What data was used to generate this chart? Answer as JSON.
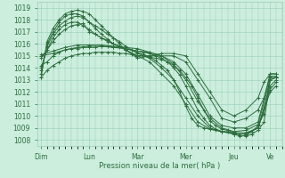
{
  "title": "",
  "xlabel": "Pression niveau de la mer( hPa )",
  "ylabel": "",
  "bg_color": "#cceedd",
  "grid_color": "#99ccbb",
  "line_color": "#2d6e3e",
  "marker_color": "#2d6e3e",
  "ylim": [
    1007.5,
    1019.5
  ],
  "yticks": [
    1008,
    1009,
    1010,
    1011,
    1012,
    1013,
    1014,
    1015,
    1016,
    1017,
    1018,
    1019
  ],
  "day_positions": [
    0,
    24,
    48,
    72,
    96,
    114
  ],
  "day_labels": [
    "Dim",
    "Lun",
    "Mar",
    "Mer",
    "Jeu",
    "Ve"
  ],
  "xlim": [
    -2,
    120
  ],
  "series": [
    [
      0,
      1013.2,
      3,
      1013.8,
      6,
      1014.2,
      9,
      1014.5,
      12,
      1014.8,
      15,
      1015.0,
      18,
      1015.1,
      21,
      1015.2,
      24,
      1015.2,
      27,
      1015.3,
      30,
      1015.3,
      33,
      1015.3,
      36,
      1015.3,
      39,
      1015.2,
      42,
      1015.2,
      45,
      1015.1,
      48,
      1015.0,
      51,
      1015.0,
      54,
      1014.9,
      57,
      1014.8,
      60,
      1014.7,
      63,
      1014.5,
      66,
      1014.2,
      69,
      1013.8,
      72,
      1013.2,
      75,
      1012.5,
      78,
      1011.5,
      81,
      1010.5,
      84,
      1009.6,
      87,
      1009.2,
      90,
      1008.9,
      93,
      1008.8,
      96,
      1008.6,
      99,
      1008.4,
      102,
      1008.3,
      105,
      1008.5,
      108,
      1008.8,
      111,
      1009.5,
      114,
      1013.0,
      117,
      1013.2
    ],
    [
      0,
      1014.2,
      3,
      1014.5,
      6,
      1015.0,
      9,
      1015.3,
      12,
      1015.5,
      15,
      1015.6,
      18,
      1015.6,
      21,
      1015.7,
      24,
      1015.7,
      27,
      1015.7,
      30,
      1015.8,
      33,
      1015.8,
      36,
      1015.7,
      39,
      1015.7,
      42,
      1015.6,
      45,
      1015.5,
      48,
      1015.4,
      51,
      1015.3,
      54,
      1015.2,
      57,
      1015.0,
      60,
      1014.8,
      63,
      1014.5,
      66,
      1014.0,
      69,
      1013.4,
      72,
      1012.5,
      75,
      1011.5,
      78,
      1010.5,
      81,
      1009.8,
      84,
      1009.2,
      87,
      1008.9,
      90,
      1008.7,
      93,
      1008.7,
      96,
      1008.5,
      99,
      1008.3,
      102,
      1008.4,
      105,
      1008.7,
      108,
      1009.2,
      111,
      1010.2,
      114,
      1013.2,
      117,
      1013.2
    ],
    [
      0,
      1015.0,
      6,
      1015.2,
      12,
      1015.5,
      18,
      1015.7,
      24,
      1015.8,
      30,
      1015.8,
      36,
      1015.7,
      42,
      1015.6,
      48,
      1015.4,
      54,
      1015.3,
      60,
      1015.0,
      66,
      1014.5,
      72,
      1013.5,
      78,
      1011.8,
      84,
      1010.0,
      90,
      1009.2,
      96,
      1009.0,
      102,
      1009.0,
      108,
      1009.5,
      114,
      1013.3,
      117,
      1013.3
    ],
    [
      0,
      1015.1,
      6,
      1015.4,
      12,
      1015.7,
      18,
      1015.9,
      24,
      1015.9,
      30,
      1015.9,
      36,
      1015.8,
      42,
      1015.7,
      48,
      1015.6,
      54,
      1015.3,
      60,
      1015.0,
      66,
      1014.3,
      72,
      1013.0,
      78,
      1011.2,
      84,
      1009.8,
      90,
      1009.0,
      96,
      1008.7,
      102,
      1008.8,
      108,
      1009.3,
      114,
      1013.0,
      117,
      1013.2
    ],
    [
      0,
      1014.8,
      6,
      1016.2,
      9,
      1016.8,
      12,
      1017.2,
      15,
      1017.5,
      18,
      1017.6,
      21,
      1017.7,
      24,
      1017.0,
      27,
      1016.8,
      30,
      1016.5,
      33,
      1016.2,
      36,
      1016.0,
      39,
      1015.8,
      42,
      1015.6,
      45,
      1015.5,
      48,
      1015.3,
      51,
      1015.1,
      54,
      1014.9,
      57,
      1014.6,
      60,
      1014.2,
      63,
      1013.8,
      66,
      1013.0,
      69,
      1012.0,
      72,
      1010.8,
      75,
      1009.8,
      78,
      1009.2,
      81,
      1009.0,
      84,
      1008.9,
      87,
      1008.8,
      90,
      1008.7,
      96,
      1008.6,
      102,
      1008.6,
      108,
      1009.0,
      114,
      1012.5,
      117,
      1013.0
    ],
    [
      0,
      1014.0,
      3,
      1015.5,
      6,
      1016.5,
      9,
      1017.2,
      12,
      1017.6,
      15,
      1017.8,
      18,
      1017.8,
      21,
      1017.5,
      24,
      1017.2,
      27,
      1016.8,
      30,
      1016.5,
      33,
      1016.3,
      36,
      1016.0,
      39,
      1015.8,
      42,
      1015.5,
      48,
      1015.0,
      54,
      1014.5,
      60,
      1013.5,
      66,
      1012.5,
      72,
      1011.0,
      78,
      1009.5,
      84,
      1008.9,
      90,
      1008.7,
      96,
      1008.5,
      102,
      1008.5,
      108,
      1009.0,
      114,
      1012.2,
      117,
      1012.8
    ],
    [
      0,
      1013.8,
      3,
      1015.8,
      6,
      1016.8,
      9,
      1017.5,
      12,
      1017.9,
      15,
      1018.2,
      18,
      1018.3,
      21,
      1018.2,
      24,
      1017.8,
      27,
      1017.5,
      30,
      1017.2,
      33,
      1016.8,
      36,
      1016.5,
      39,
      1016.2,
      42,
      1015.8,
      48,
      1015.2,
      54,
      1014.8,
      60,
      1014.0,
      66,
      1013.0,
      72,
      1011.5,
      78,
      1010.0,
      84,
      1009.0,
      90,
      1008.7,
      96,
      1008.5,
      102,
      1008.5,
      108,
      1009.0,
      114,
      1012.0,
      117,
      1012.5
    ],
    [
      0,
      1013.5,
      3,
      1016.0,
      6,
      1017.0,
      9,
      1017.8,
      12,
      1018.3,
      15,
      1018.5,
      18,
      1018.5,
      21,
      1018.3,
      24,
      1017.8,
      27,
      1017.3,
      30,
      1016.8,
      33,
      1016.4,
      36,
      1016.0,
      39,
      1015.8,
      42,
      1015.5,
      48,
      1015.0,
      54,
      1015.0,
      60,
      1015.0,
      66,
      1015.0,
      72,
      1014.5,
      78,
      1013.0,
      84,
      1011.5,
      90,
      1009.8,
      96,
      1009.5,
      102,
      1009.8,
      108,
      1010.5,
      111,
      1011.5,
      114,
      1013.5,
      117,
      1013.5
    ],
    [
      0,
      1013.2,
      3,
      1016.2,
      6,
      1017.3,
      9,
      1018.0,
      12,
      1018.5,
      15,
      1018.7,
      18,
      1018.8,
      21,
      1018.7,
      24,
      1018.5,
      27,
      1018.0,
      30,
      1017.5,
      33,
      1017.0,
      36,
      1016.5,
      39,
      1016.0,
      42,
      1015.5,
      48,
      1014.8,
      54,
      1015.0,
      60,
      1015.2,
      66,
      1015.2,
      72,
      1015.0,
      78,
      1013.5,
      84,
      1012.0,
      90,
      1010.5,
      96,
      1010.0,
      102,
      1010.5,
      108,
      1011.5,
      111,
      1012.8,
      114,
      1013.5,
      117,
      1013.5
    ]
  ]
}
